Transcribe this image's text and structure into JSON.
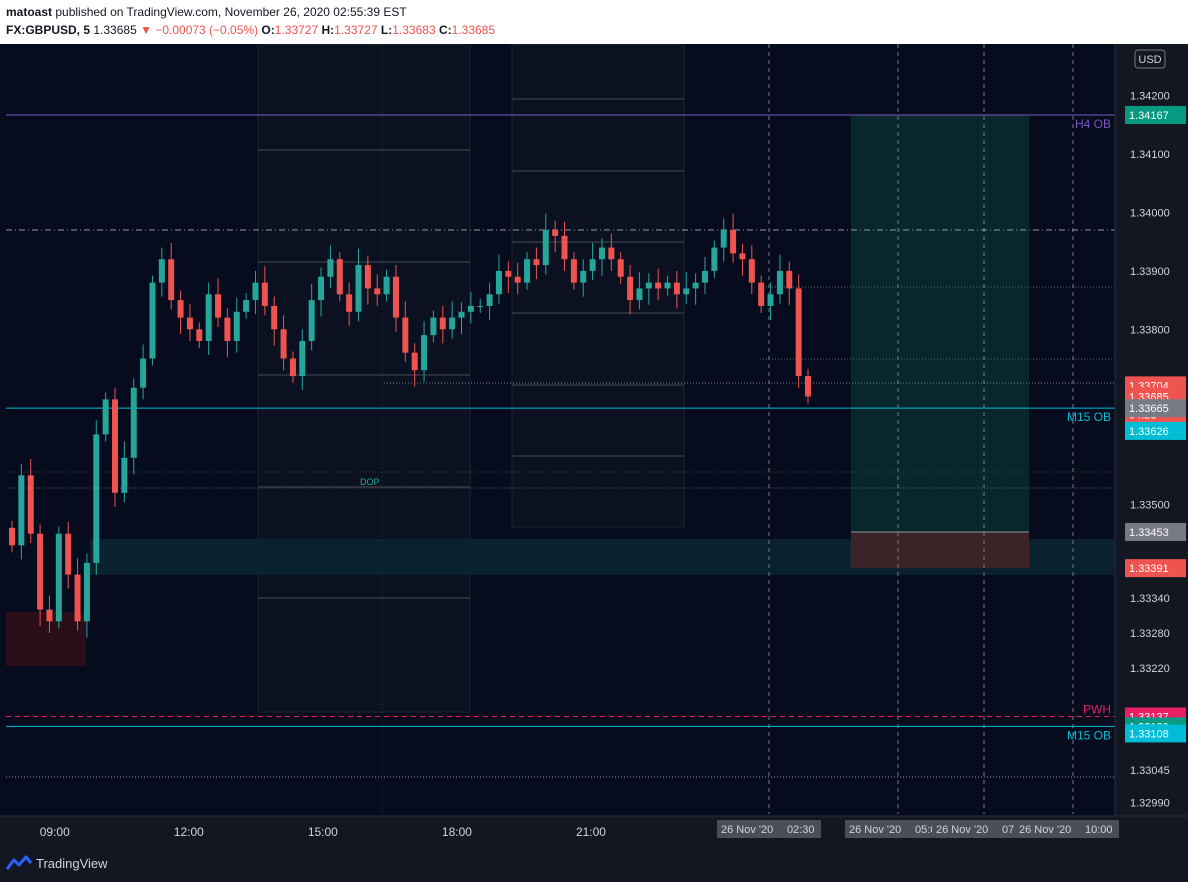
{
  "header": {
    "author": "matoast",
    "published_text": "published on TradingView.com, November 26, 2020 02:55:39 EST",
    "symbol": "FX:GBPUSD, 5",
    "last": "1.33685",
    "change": "−0.00073 (−0.05%)",
    "o_label": "O:",
    "o": "1.33727",
    "h_label": "H:",
    "h": "1.33727",
    "l_label": "L:",
    "l": "1.33683",
    "c_label": "C:",
    "c": "1.33685"
  },
  "brand": {
    "name": "TradingView",
    "icon": "tradingview-logo-icon"
  },
  "colors": {
    "background": "#131722",
    "up": "#26a69a",
    "down": "#ef5350",
    "h4_ob": "#7e57c2",
    "m15_ob": "#00bcd4",
    "pwh": "#e91e63"
  },
  "chart_data": {
    "type": "candlestick",
    "title": "FX:GBPUSD, 5",
    "currency": "USD",
    "ylim": [
      1.3297,
      1.3428
    ],
    "y_ticks": [
      "1.34200",
      "1.34100",
      "1.34000",
      "1.33900",
      "1.33800",
      "1.33500",
      "1.33340",
      "1.33280",
      "1.33220",
      "1.33045",
      "1.32990"
    ],
    "x_ticks": [
      "09:00",
      "12:00",
      "15:00",
      "18:00",
      "21:00",
      "26"
    ],
    "x_tick_positions": [
      0.04,
      0.15,
      0.26,
      0.37,
      0.48,
      0.59
    ],
    "date_boxes": [
      "26 Nov '20",
      "02:30",
      "26 Nov '20",
      "05:00",
      "26 Nov '20",
      "07:30",
      "26 Nov '20",
      "10:00"
    ],
    "close_series": [
      1.3343,
      1.3355,
      1.3345,
      1.3332,
      1.333,
      1.3345,
      1.3338,
      1.333,
      1.334,
      1.3362,
      1.3368,
      1.3352,
      1.3358,
      1.337,
      1.3375,
      1.3388,
      1.3392,
      1.3385,
      1.3382,
      1.338,
      1.3378,
      1.3386,
      1.3382,
      1.3378,
      1.3383,
      1.3385,
      1.3388,
      1.3384,
      1.338,
      1.3375,
      1.3372,
      1.3378,
      1.3385,
      1.3389,
      1.3392,
      1.3386,
      1.3383,
      1.3391,
      1.3387,
      1.3386,
      1.3389,
      1.3382,
      1.3376,
      1.3373,
      1.3379,
      1.3382,
      1.338,
      1.3382,
      1.3383,
      1.3384,
      1.3384,
      1.3386,
      1.339,
      1.3389,
      1.3388,
      1.3392,
      1.3391,
      1.3397,
      1.3396,
      1.3392,
      1.3388,
      1.339,
      1.3392,
      1.3394,
      1.3392,
      1.3389,
      1.3385,
      1.3387,
      1.3388,
      1.3387,
      1.3388,
      1.3386,
      1.3387,
      1.3388,
      1.339,
      1.3394,
      1.3397,
      1.3393,
      1.3392,
      1.3388,
      1.3384,
      1.3386,
      1.339,
      1.3387,
      1.3372,
      1.33685
    ],
    "horizontal_levels": [
      {
        "label": "H4 OB",
        "value": "1.34167",
        "color": "#7e57c2"
      },
      {
        "label": "M15 OB",
        "value": "1.33665",
        "color": "#00bcd4"
      },
      {
        "label": "PWH",
        "value": "1.33137",
        "color": "#e91e63"
      },
      {
        "label": "M15 OB",
        "value": "1.33120",
        "color": "#00bcd4"
      }
    ],
    "price_badges": [
      {
        "value": "1.34167",
        "color": "#7e57c2"
      },
      {
        "value": "1.34167",
        "color": "#089981"
      },
      {
        "value": "1.33704",
        "color": "#ef5350"
      },
      {
        "value": "1.33685",
        "color": "#ef5350"
      },
      {
        "value": "04:23",
        "color": "#ef5350"
      },
      {
        "value": "1.33665",
        "color": "#787b86"
      },
      {
        "value": "1.33626",
        "color": "#00bcd4"
      },
      {
        "value": "1.33453",
        "color": "#787b86"
      },
      {
        "value": "1.33391",
        "color": "#ef5350"
      },
      {
        "value": "1.33137",
        "color": "#e91e63"
      },
      {
        "value": "1.33120",
        "color": "#089981"
      },
      {
        "value": "1.33108",
        "color": "#00bcd4"
      }
    ],
    "annotations": [
      "DOP"
    ],
    "position_tool": {
      "entry": "1.33453",
      "stop": "1.33391",
      "target": "1.34167"
    }
  }
}
